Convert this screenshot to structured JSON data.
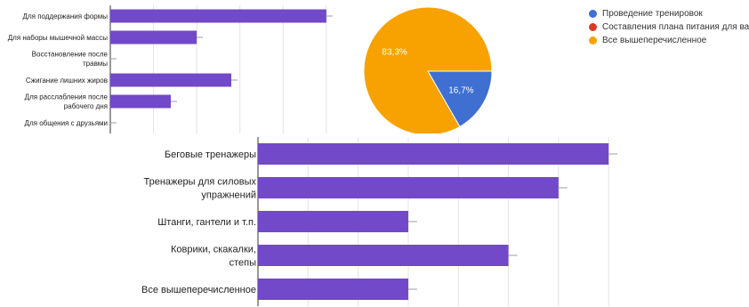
{
  "colors": {
    "bar": "#7249c8",
    "grid": "#e3e3e3",
    "axis": "#333333",
    "error_bar": "#9e9e9e",
    "text": "#222222"
  },
  "chart_data": [
    {
      "type": "bar",
      "orientation": "horizontal",
      "categories": [
        "Для поддержания формы",
        "Для наборы мышечной массы",
        "Восстановление после травмы",
        "Сжигание лишних жиров",
        "Для расслабления после рабочего дня",
        "Для общения с друзьями"
      ],
      "values": [
        5,
        2,
        0,
        2.8,
        1.4,
        0
      ],
      "xlim": [
        0,
        5.6
      ],
      "grid": true,
      "error_bars": true,
      "color": "#7249c8"
    },
    {
      "type": "pie",
      "slices": [
        {
          "label": "Проведение тренировок",
          "value": 16.7,
          "display": "16,7%",
          "color": "#3e6fd1"
        },
        {
          "label": "Составления плана питания для вас",
          "value": 0,
          "display": "",
          "color": "#d93b25"
        },
        {
          "label": "Все вышеперечисленное",
          "value": 83.3,
          "display": "83,3%",
          "color": "#f7a200"
        }
      ],
      "legend_position": "right"
    },
    {
      "type": "bar",
      "orientation": "horizontal",
      "categories": [
        "Беговые тренажеры",
        "Тренажеры для силовых упражнений",
        "Штанги, гантели и т.п.",
        "Коврики, скакалки, степы",
        "Все вышеперечисленное"
      ],
      "values": [
        7,
        6,
        3,
        5,
        3
      ],
      "xlim": [
        0,
        7.6
      ],
      "grid": true,
      "error_bars": true,
      "color": "#7249c8"
    }
  ]
}
